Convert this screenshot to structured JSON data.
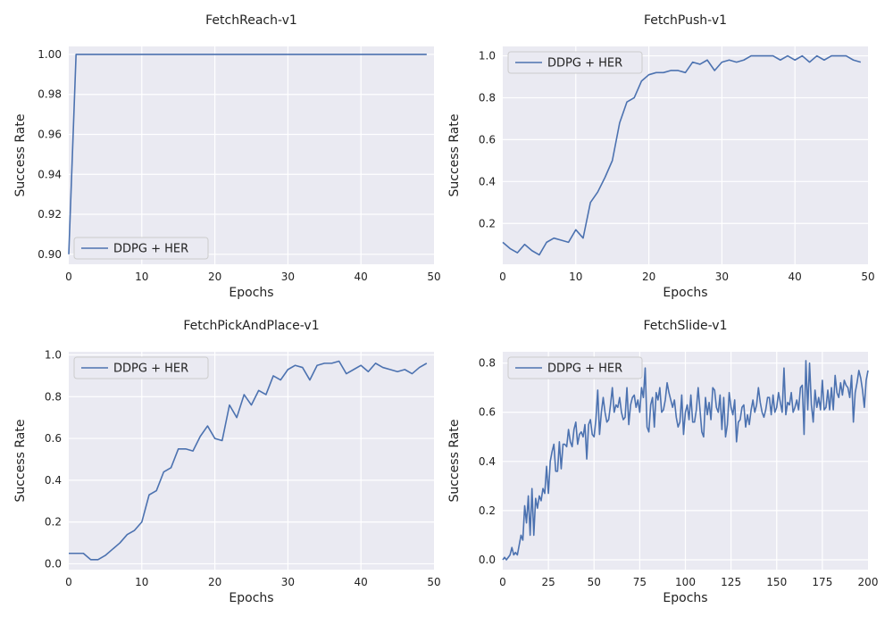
{
  "colors": {
    "panel_bg": "#eaeaf2",
    "line": "#4c72b0",
    "grid": "#ffffff"
  },
  "chart_data": [
    {
      "type": "line",
      "title": "FetchReach-v1",
      "xlabel": "Epochs",
      "ylabel": "Success Rate",
      "xlim": [
        0,
        50
      ],
      "ylim": [
        0.895,
        1.004
      ],
      "xticks": [
        0,
        10,
        20,
        30,
        40,
        50
      ],
      "yticks": [
        0.9,
        0.92,
        0.94,
        0.96,
        0.98,
        1.0
      ],
      "ytick_labels": [
        "0.90",
        "0.92",
        "0.94",
        "0.96",
        "0.98",
        "1.00"
      ],
      "grid": true,
      "legend_position": "lower-left",
      "series": [
        {
          "name": "DDPG + HER",
          "x": [
            0,
            1,
            2,
            3,
            4,
            5,
            6,
            7,
            8,
            9,
            10,
            11,
            12,
            13,
            14,
            15,
            16,
            17,
            18,
            19,
            20,
            21,
            22,
            23,
            24,
            25,
            26,
            27,
            28,
            29,
            30,
            31,
            32,
            33,
            34,
            35,
            36,
            37,
            38,
            39,
            40,
            41,
            42,
            43,
            44,
            45,
            46,
            47,
            48,
            49
          ],
          "y": [
            0.9,
            1.0,
            1.0,
            1.0,
            1.0,
            1.0,
            1.0,
            1.0,
            1.0,
            1.0,
            1.0,
            1.0,
            1.0,
            1.0,
            1.0,
            1.0,
            1.0,
            1.0,
            1.0,
            1.0,
            1.0,
            1.0,
            1.0,
            1.0,
            1.0,
            1.0,
            1.0,
            1.0,
            1.0,
            1.0,
            1.0,
            1.0,
            1.0,
            1.0,
            1.0,
            1.0,
            1.0,
            1.0,
            1.0,
            1.0,
            1.0,
            1.0,
            1.0,
            1.0,
            1.0,
            1.0,
            1.0,
            1.0,
            1.0,
            1.0
          ]
        }
      ]
    },
    {
      "type": "line",
      "title": "FetchPush-v1",
      "xlabel": "Epochs",
      "ylabel": "Success Rate",
      "xlim": [
        0,
        50
      ],
      "ylim": [
        0.005,
        1.045
      ],
      "xticks": [
        0,
        10,
        20,
        30,
        40,
        50
      ],
      "yticks": [
        0.2,
        0.4,
        0.6,
        0.8,
        1.0
      ],
      "ytick_labels": [
        "0.2",
        "0.4",
        "0.6",
        "0.8",
        "1.0"
      ],
      "grid": true,
      "legend_position": "upper-left",
      "series": [
        {
          "name": "DDPG + HER",
          "x": [
            0,
            1,
            2,
            3,
            4,
            5,
            6,
            7,
            8,
            9,
            10,
            11,
            12,
            13,
            14,
            15,
            16,
            17,
            18,
            19,
            20,
            21,
            22,
            23,
            24,
            25,
            26,
            27,
            28,
            29,
            30,
            31,
            32,
            33,
            34,
            35,
            36,
            37,
            38,
            39,
            40,
            41,
            42,
            43,
            44,
            45,
            46,
            47,
            48,
            49
          ],
          "y": [
            0.11,
            0.08,
            0.06,
            0.1,
            0.07,
            0.05,
            0.11,
            0.13,
            0.12,
            0.11,
            0.17,
            0.13,
            0.3,
            0.35,
            0.42,
            0.5,
            0.68,
            0.78,
            0.8,
            0.88,
            0.91,
            0.92,
            0.92,
            0.93,
            0.93,
            0.92,
            0.97,
            0.96,
            0.98,
            0.93,
            0.97,
            0.98,
            0.97,
            0.98,
            1.0,
            1.0,
            1.0,
            1.0,
            0.98,
            1.0,
            0.98,
            1.0,
            0.97,
            1.0,
            0.98,
            1.0,
            1.0,
            1.0,
            0.98,
            0.97
          ]
        }
      ]
    },
    {
      "type": "line",
      "title": "FetchPickAndPlace-v1",
      "xlabel": "Epochs",
      "ylabel": "Success Rate",
      "xlim": [
        0,
        50
      ],
      "ylim": [
        -0.028,
        1.015
      ],
      "xticks": [
        0,
        10,
        20,
        30,
        40,
        50
      ],
      "yticks": [
        0.0,
        0.2,
        0.4,
        0.6,
        0.8,
        1.0
      ],
      "ytick_labels": [
        "0.0",
        "0.2",
        "0.4",
        "0.6",
        "0.8",
        "1.0"
      ],
      "grid": true,
      "legend_position": "upper-left",
      "series": [
        {
          "name": "DDPG + HER",
          "x": [
            0,
            1,
            2,
            3,
            4,
            5,
            6,
            7,
            8,
            9,
            10,
            11,
            12,
            13,
            14,
            15,
            16,
            17,
            18,
            19,
            20,
            21,
            22,
            23,
            24,
            25,
            26,
            27,
            28,
            29,
            30,
            31,
            32,
            33,
            34,
            35,
            36,
            37,
            38,
            39,
            40,
            41,
            42,
            43,
            44,
            45,
            46,
            47,
            48,
            49
          ],
          "y": [
            0.05,
            0.05,
            0.05,
            0.02,
            0.02,
            0.04,
            0.07,
            0.1,
            0.14,
            0.16,
            0.2,
            0.33,
            0.35,
            0.44,
            0.46,
            0.55,
            0.55,
            0.54,
            0.61,
            0.66,
            0.6,
            0.59,
            0.76,
            0.7,
            0.81,
            0.76,
            0.83,
            0.81,
            0.9,
            0.88,
            0.93,
            0.95,
            0.94,
            0.88,
            0.95,
            0.96,
            0.96,
            0.97,
            0.91,
            0.93,
            0.95,
            0.92,
            0.96,
            0.94,
            0.93,
            0.92,
            0.93,
            0.91,
            0.94,
            0.96
          ]
        }
      ]
    },
    {
      "type": "line",
      "title": "FetchSlide-v1",
      "xlabel": "Epochs",
      "ylabel": "Success Rate",
      "xlim": [
        0,
        200
      ],
      "ylim": [
        -0.04,
        0.846
      ],
      "xticks": [
        0,
        25,
        50,
        75,
        100,
        125,
        150,
        175,
        200
      ],
      "yticks": [
        0.0,
        0.2,
        0.4,
        0.6,
        0.8
      ],
      "ytick_labels": [
        "0.0",
        "0.2",
        "0.4",
        "0.6",
        "0.8"
      ],
      "grid": true,
      "legend_position": "upper-left",
      "series": [
        {
          "name": "DDPG + HER",
          "x_start": 0,
          "x_step": 1,
          "y": [
            0.0,
            0.01,
            0.0,
            0.01,
            0.02,
            0.05,
            0.02,
            0.03,
            0.02,
            0.06,
            0.1,
            0.08,
            0.22,
            0.15,
            0.26,
            0.1,
            0.29,
            0.1,
            0.25,
            0.21,
            0.26,
            0.24,
            0.29,
            0.27,
            0.38,
            0.27,
            0.4,
            0.44,
            0.47,
            0.36,
            0.36,
            0.48,
            0.37,
            0.47,
            0.47,
            0.46,
            0.53,
            0.48,
            0.46,
            0.53,
            0.56,
            0.47,
            0.51,
            0.52,
            0.5,
            0.55,
            0.41,
            0.55,
            0.57,
            0.51,
            0.5,
            0.57,
            0.69,
            0.51,
            0.6,
            0.66,
            0.6,
            0.56,
            0.57,
            0.63,
            0.7,
            0.6,
            0.63,
            0.62,
            0.66,
            0.6,
            0.57,
            0.58,
            0.7,
            0.55,
            0.63,
            0.66,
            0.67,
            0.62,
            0.65,
            0.6,
            0.7,
            0.66,
            0.78,
            0.54,
            0.52,
            0.63,
            0.66,
            0.54,
            0.68,
            0.65,
            0.7,
            0.6,
            0.61,
            0.65,
            0.72,
            0.68,
            0.65,
            0.62,
            0.65,
            0.58,
            0.54,
            0.56,
            0.67,
            0.51,
            0.6,
            0.63,
            0.57,
            0.67,
            0.56,
            0.56,
            0.61,
            0.7,
            0.61,
            0.52,
            0.5,
            0.66,
            0.59,
            0.64,
            0.57,
            0.7,
            0.69,
            0.62,
            0.6,
            0.67,
            0.53,
            0.66,
            0.5,
            0.55,
            0.68,
            0.62,
            0.59,
            0.65,
            0.48,
            0.56,
            0.57,
            0.62,
            0.63,
            0.54,
            0.59,
            0.55,
            0.61,
            0.65,
            0.6,
            0.63,
            0.7,
            0.64,
            0.6,
            0.58,
            0.61,
            0.66,
            0.66,
            0.59,
            0.67,
            0.6,
            0.62,
            0.68,
            0.64,
            0.6,
            0.78,
            0.59,
            0.64,
            0.63,
            0.68,
            0.6,
            0.62,
            0.65,
            0.61,
            0.7,
            0.71,
            0.51,
            0.81,
            0.61,
            0.8,
            0.63,
            0.56,
            0.69,
            0.62,
            0.66,
            0.61,
            0.73,
            0.61,
            0.62,
            0.69,
            0.61,
            0.7,
            0.61,
            0.75,
            0.68,
            0.66,
            0.72,
            0.67,
            0.73,
            0.71,
            0.7,
            0.66,
            0.75,
            0.56,
            0.68,
            0.72,
            0.77,
            0.74,
            0.69,
            0.62,
            0.73,
            0.77
          ]
        }
      ]
    }
  ]
}
